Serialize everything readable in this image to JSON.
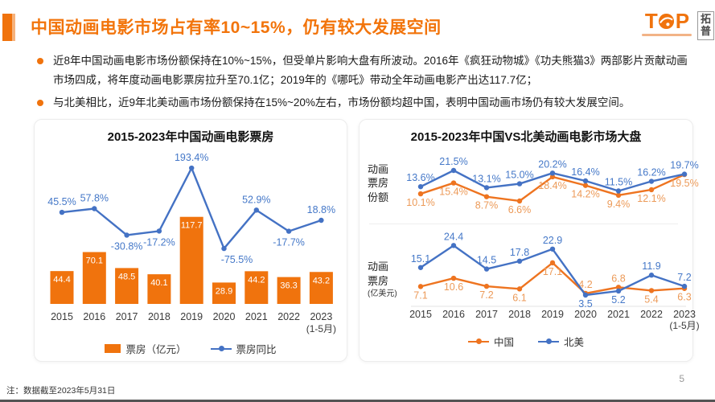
{
  "page": {
    "title": "中国动画电影市场占有率10~15%，仍有较大发展空间",
    "footnote": "注：数据截至2023年5月31日",
    "page_number": "5"
  },
  "logo": {
    "letter_t": "T",
    "letter_p": "P",
    "box_text": "拓普"
  },
  "bullets": [
    "近8年中国动画电影市场份额保持在10%~15%，但受单片影响大盘有所波动。2016年《疯狂动物城》《功夫熊猫3》两部影片贡献动画市场四成，将年度动画电影票房拉升至70.1亿；2019年的《哪吒》带动全年动画电影产出达117.7亿；",
    "与北美相比，近9年北美动画市场份额保持在15%~20%左右，市场份额均超中国，表明中国动画市场仍有较大发展空间。"
  ],
  "colors": {
    "accent_orange": "#F0730D",
    "bar_orange": "#F0730D",
    "line_orange": "#EE7420",
    "line_blue": "#4472C4",
    "label_blue": "#4578C8",
    "label_orange": "#EC9A58",
    "axis_text": "#3a3a3a",
    "bar_value_text": "#ffffff"
  },
  "chart_data": [
    {
      "type": "bar",
      "title": "2015-2023年中国动画电影票房",
      "categories": [
        "2015",
        "2016",
        "2017",
        "2018",
        "2019",
        "2020",
        "2021",
        "2022",
        "2023"
      ],
      "last_category_note": "(1-5月)",
      "legend_position": "bottom",
      "series": [
        {
          "name": "票房（亿元）",
          "type": "bar",
          "values": [
            44.4,
            70.1,
            48.5,
            40.1,
            117.7,
            28.9,
            44.2,
            36.3,
            43.2
          ]
        },
        {
          "name": "票房同比",
          "type": "line",
          "unit": "%",
          "values": [
            45.5,
            57.8,
            -30.8,
            -17.2,
            193.4,
            -75.5,
            52.9,
            -17.7,
            18.8
          ]
        }
      ]
    },
    {
      "type": "line",
      "title": "2015-2023年中国VS北美动画电影市场大盘",
      "row_label": "动画票房份额",
      "unit": "%",
      "categories": [
        "2015",
        "2016",
        "2017",
        "2018",
        "2019",
        "2020",
        "2021",
        "2022",
        "2023"
      ],
      "legend_position": "none",
      "series": [
        {
          "name": "中国",
          "values": [
            10.1,
            15.4,
            8.7,
            6.6,
            18.4,
            14.2,
            9.4,
            12.1,
            19.5
          ],
          "label_sides": [
            "b",
            "b",
            "b",
            "b",
            "b",
            "b",
            "b",
            "b",
            "b"
          ]
        },
        {
          "name": "北美",
          "values": [
            13.6,
            21.5,
            13.1,
            15.0,
            20.2,
            16.4,
            11.5,
            16.2,
            19.7
          ],
          "label_sides": [
            "a",
            "a",
            "a",
            "a",
            "a",
            "a",
            "a",
            "a",
            "a"
          ]
        }
      ]
    },
    {
      "type": "line",
      "row_label": "动画票房",
      "unit_label": "(亿美元)",
      "categories": [
        "2015",
        "2016",
        "2017",
        "2018",
        "2019",
        "2020",
        "2021",
        "2022",
        "2023"
      ],
      "last_category_note": "(1-5月)",
      "legend_position": "bottom",
      "series": [
        {
          "name": "中国",
          "values": [
            7.1,
            10.6,
            7.2,
            6.1,
            17.1,
            4.2,
            6.8,
            5.4,
            6.3
          ],
          "label_sides": [
            "b",
            "b",
            "b",
            "b",
            "b",
            "a",
            "a",
            "b",
            "b"
          ]
        },
        {
          "name": "北美",
          "values": [
            15.1,
            24.4,
            14.5,
            17.8,
            22.9,
            3.5,
            5.2,
            11.9,
            7.2
          ],
          "label_sides": [
            "a",
            "a",
            "a",
            "a",
            "a",
            "b",
            "b",
            "a",
            "a"
          ]
        }
      ]
    }
  ]
}
